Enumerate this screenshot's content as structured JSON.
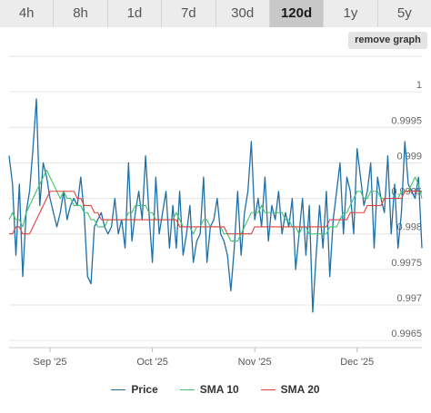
{
  "ranges": [
    {
      "label": "4h",
      "active": false
    },
    {
      "label": "8h",
      "active": false
    },
    {
      "label": "1d",
      "active": false
    },
    {
      "label": "7d",
      "active": false
    },
    {
      "label": "30d",
      "active": false
    },
    {
      "label": "120d",
      "active": true
    },
    {
      "label": "1y",
      "active": false
    },
    {
      "label": "5y",
      "active": false
    }
  ],
  "remove_graph_label": "remove graph",
  "colors": {
    "price": "#1f6fa8",
    "sma10": "#3fc36b",
    "sma20": "#e0403a",
    "grid": "#e6e6e6"
  },
  "chart_data": {
    "type": "line",
    "x_ticks": [
      "Sep '25",
      "Oct '25",
      "Nov '25",
      "Dec '25"
    ],
    "x_tick_index": [
      12,
      42,
      72,
      102
    ],
    "y_ticks": [
      0.9965,
      0.997,
      0.9975,
      0.998,
      0.9985,
      0.999,
      0.9995,
      1
    ],
    "ylim": [
      0.9964,
      1.0005
    ],
    "grid": true,
    "legend_position": "bottom",
    "series": [
      {
        "name": "Price",
        "key": "price",
        "values": [
          0.9991,
          0.9987,
          0.9977,
          0.9987,
          0.9974,
          0.9983,
          0.9986,
          0.9992,
          0.9999,
          0.9984,
          0.999,
          0.9988,
          0.9985,
          0.9983,
          0.9981,
          0.9983,
          0.9986,
          0.9982,
          0.9984,
          0.9985,
          0.9984,
          0.9988,
          0.9983,
          0.9974,
          0.9973,
          0.9981,
          0.9982,
          0.9983,
          0.9981,
          0.998,
          0.9981,
          0.9985,
          0.998,
          0.9982,
          0.9978,
          0.999,
          0.9979,
          0.9983,
          0.9986,
          0.9982,
          0.9991,
          0.9983,
          0.9976,
          0.9988,
          0.998,
          0.9983,
          0.9986,
          0.9978,
          0.9984,
          0.9978,
          0.9986,
          0.9977,
          0.998,
          0.9984,
          0.9976,
          0.9979,
          0.998,
          0.9988,
          0.9976,
          0.9981,
          0.9982,
          0.9985,
          0.998,
          0.9979,
          0.9977,
          0.9972,
          0.9978,
          0.9986,
          0.9977,
          0.9983,
          0.9986,
          0.9993,
          0.9982,
          0.9985,
          0.9981,
          0.9988,
          0.9979,
          0.9984,
          0.9982,
          0.9986,
          0.998,
          0.9983,
          0.9981,
          0.9985,
          0.9975,
          0.998,
          0.9985,
          0.9977,
          0.9984,
          0.9969,
          0.9977,
          0.9984,
          0.9978,
          0.9986,
          0.9974,
          0.9982,
          0.9986,
          0.999,
          0.998,
          0.9988,
          0.9986,
          0.998,
          0.9992,
          0.9988,
          0.9984,
          0.9986,
          0.999,
          0.9978,
          0.9988,
          0.9985,
          0.9983,
          0.9991,
          0.998,
          0.9987,
          0.9978,
          0.9983,
          0.9993,
          0.9987,
          0.9986,
          0.9985,
          0.9988,
          0.9978
        ]
      },
      {
        "name": "SMA 10",
        "key": "sma10",
        "values": [
          0.9982,
          0.9983,
          0.9982,
          0.9982,
          0.9981,
          0.9983,
          0.9984,
          0.9985,
          0.9986,
          0.9987,
          0.9988,
          0.9989,
          0.9988,
          0.9987,
          0.9986,
          0.9985,
          0.9986,
          0.9985,
          0.9985,
          0.9984,
          0.9984,
          0.9984,
          0.9983,
          0.9983,
          0.9982,
          0.9982,
          0.9981,
          0.9981,
          0.9981,
          0.9982,
          0.9982,
          0.9982,
          0.9982,
          0.9982,
          0.9982,
          0.9983,
          0.9983,
          0.9984,
          0.9984,
          0.9984,
          0.9984,
          0.9983,
          0.9983,
          0.9982,
          0.9982,
          0.9982,
          0.9982,
          0.9982,
          0.9982,
          0.9983,
          0.9982,
          0.9981,
          0.9981,
          0.9981,
          0.998,
          0.9981,
          0.9981,
          0.9982,
          0.9982,
          0.9981,
          0.9981,
          0.9981,
          0.9981,
          0.998,
          0.998,
          0.9979,
          0.9979,
          0.9979,
          0.998,
          0.9981,
          0.9982,
          0.9983,
          0.9983,
          0.9983,
          0.9984,
          0.9983,
          0.9983,
          0.9983,
          0.9983,
          0.9983,
          0.9983,
          0.9982,
          0.9982,
          0.9981,
          0.9981,
          0.998,
          0.9981,
          0.9981,
          0.998,
          0.998,
          0.998,
          0.998,
          0.998,
          0.998,
          0.9981,
          0.9981,
          0.9981,
          0.9982,
          0.9983,
          0.9983,
          0.9984,
          0.9985,
          0.9986,
          0.9986,
          0.9985,
          0.9985,
          0.9986,
          0.9986,
          0.9986,
          0.9985,
          0.9985,
          0.9985,
          0.9985,
          0.9985,
          0.9985,
          0.9986,
          0.9986,
          0.9986,
          0.9987,
          0.9988,
          0.9987,
          0.9985
        ]
      },
      {
        "name": "SMA 20",
        "key": "sma20",
        "values": [
          0.998,
          0.998,
          0.9981,
          0.9981,
          0.998,
          0.998,
          0.998,
          0.9981,
          0.9982,
          0.9983,
          0.9984,
          0.9985,
          0.9986,
          0.9986,
          0.9986,
          0.9986,
          0.9986,
          0.9986,
          0.9986,
          0.9986,
          0.9985,
          0.9985,
          0.9984,
          0.9984,
          0.9984,
          0.9983,
          0.9983,
          0.9982,
          0.9982,
          0.9982,
          0.9982,
          0.9982,
          0.9982,
          0.9982,
          0.9982,
          0.9982,
          0.9982,
          0.9982,
          0.9982,
          0.9982,
          0.9982,
          0.9982,
          0.9982,
          0.9982,
          0.9982,
          0.9982,
          0.9982,
          0.9982,
          0.9982,
          0.9982,
          0.9981,
          0.9981,
          0.9981,
          0.9981,
          0.9981,
          0.9981,
          0.9981,
          0.9981,
          0.9981,
          0.9981,
          0.9981,
          0.9981,
          0.9981,
          0.9981,
          0.998,
          0.998,
          0.998,
          0.998,
          0.998,
          0.998,
          0.998,
          0.998,
          0.9981,
          0.9981,
          0.9981,
          0.9981,
          0.9981,
          0.9981,
          0.9981,
          0.9981,
          0.9981,
          0.9981,
          0.9981,
          0.9981,
          0.9981,
          0.9981,
          0.9981,
          0.9981,
          0.9981,
          0.9981,
          0.9981,
          0.9981,
          0.9981,
          0.9981,
          0.9982,
          0.9982,
          0.9982,
          0.9982,
          0.9982,
          0.9982,
          0.9983,
          0.9983,
          0.9983,
          0.9983,
          0.9983,
          0.9984,
          0.9984,
          0.9984,
          0.9984,
          0.9984,
          0.9985,
          0.9985,
          0.9985,
          0.9985,
          0.9985,
          0.9985,
          0.9986,
          0.9986,
          0.9986,
          0.9986,
          0.9986,
          0.9986
        ]
      }
    ]
  }
}
